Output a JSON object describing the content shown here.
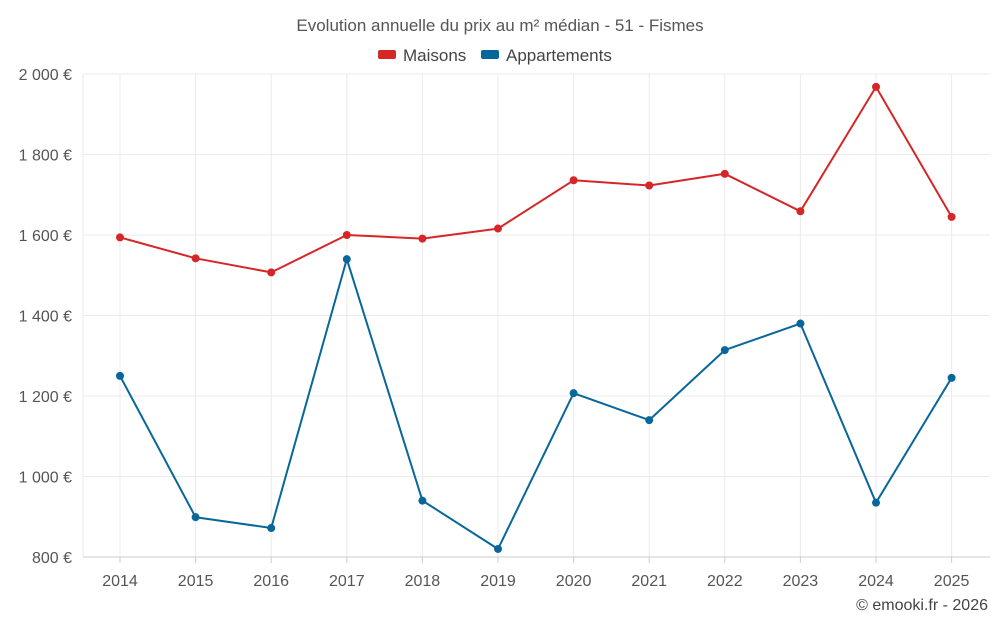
{
  "chart_data": {
    "type": "line",
    "title": "Evolution annuelle du prix au m² médian - 51 - Fismes",
    "x": [
      "2014",
      "2015",
      "2016",
      "2017",
      "2018",
      "2019",
      "2020",
      "2021",
      "2022",
      "2023",
      "2024",
      "2025"
    ],
    "series": [
      {
        "name": "Maisons",
        "color": "#d62728",
        "values": [
          1594,
          1542,
          1507,
          1600,
          1591,
          1616,
          1736,
          1723,
          1752,
          1659,
          1968,
          1645
        ]
      },
      {
        "name": "Appartements",
        "color": "#08679a",
        "values": [
          1250,
          899,
          872,
          1540,
          940,
          820,
          1207,
          1140,
          1314,
          1380,
          935,
          1245
        ]
      }
    ],
    "ylim": [
      800,
      2000
    ],
    "yticks": [
      800,
      1000,
      1200,
      1400,
      1600,
      1800,
      2000
    ],
    "ytick_labels": [
      "800 €",
      "1 000 €",
      "1 200 €",
      "1 400 €",
      "1 600 €",
      "1 800 €",
      "2 000 €"
    ],
    "legend_position": "top-center",
    "grid": true
  },
  "credit": "© emooki.fr - 2026"
}
